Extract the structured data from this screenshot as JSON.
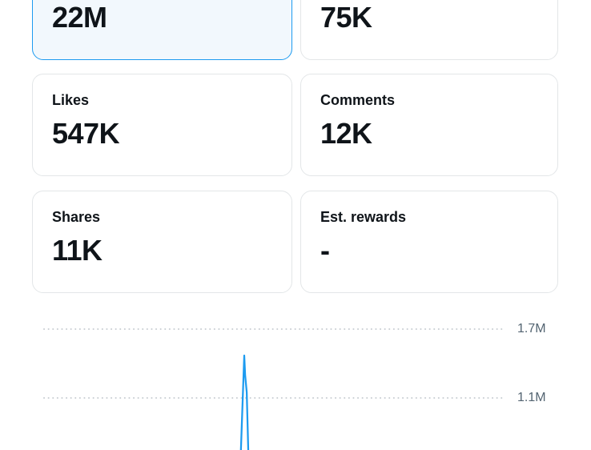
{
  "cards": [
    {
      "label": "",
      "value": "22M",
      "selected": true
    },
    {
      "label": "",
      "value": "75K",
      "selected": false
    },
    {
      "label": "Likes",
      "value": "547K",
      "selected": false
    },
    {
      "label": "Comments",
      "value": "12K",
      "selected": false
    },
    {
      "label": "Shares",
      "value": "11K",
      "selected": false
    },
    {
      "label": "Est. rewards",
      "value": "-",
      "selected": false
    }
  ],
  "colors": {
    "accent_blue": "#1d9bf0",
    "selected_card_bg": "#f2f8fd",
    "card_border": "#e3e6e8",
    "text_primary": "#0f1419",
    "axis_label_gray": "#536471",
    "gridline_gray": "#c9ced3"
  },
  "chart_data": {
    "type": "line",
    "title": "",
    "xlabel": "",
    "ylabel": "",
    "grid": "dotted horizontal",
    "legend": "none",
    "y_ticks": [
      "1.7M",
      "1.1M"
    ],
    "y_tick_values": [
      1700000,
      1100000
    ],
    "line_color": "#1d9bf0",
    "series": [
      {
        "name": "metric-over-time-spike",
        "points": [
          [
            0.428,
            620000
          ],
          [
            0.4355,
            1470000
          ],
          [
            0.4375,
            1300000
          ],
          [
            0.441,
            1150000
          ],
          [
            0.4445,
            620000
          ]
        ]
      }
    ],
    "peak_value_estimate": 1470000,
    "note_visible_crop": "baseline of series extends below visible area"
  }
}
